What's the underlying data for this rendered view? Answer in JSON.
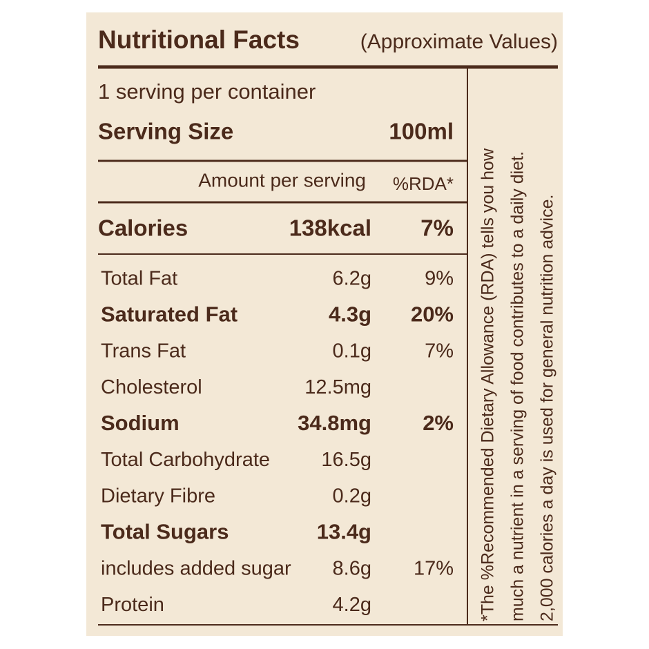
{
  "header": {
    "title": "Nutritional Facts",
    "subtitle": "(Approximate Values)"
  },
  "serving": {
    "per_container": "1 serving per container",
    "size_label": "Serving Size",
    "size_value": "100ml"
  },
  "columns": {
    "amount": "Amount per serving",
    "rda": "%RDA*"
  },
  "calories": {
    "label": "Calories",
    "amount": "138kcal",
    "rda": "7%"
  },
  "rows": [
    {
      "label": "Total Fat",
      "amount": "6.2g",
      "rda": "9%",
      "bold": false
    },
    {
      "label": "Saturated Fat",
      "amount": "4.3g",
      "rda": "20%",
      "bold": true
    },
    {
      "label": "Trans Fat",
      "amount": "0.1g",
      "rda": "7%",
      "bold": false
    },
    {
      "label": "Cholesterol",
      "amount": "12.5mg",
      "bold": false
    },
    {
      "label": "Sodium",
      "amount": "34.8mg",
      "rda": "2%",
      "bold": true
    },
    {
      "label": "Total Carbohydrate",
      "amount": "16.5g",
      "bold": false
    },
    {
      "label": "Dietary Fibre",
      "amount": "0.2g",
      "bold": false
    },
    {
      "label": "Total Sugars",
      "amount": "13.4g",
      "bold": true
    },
    {
      "label": "includes added sugar",
      "amount": "8.6g",
      "rda": "17%",
      "bold": false
    },
    {
      "label": "Protein",
      "amount": "4.2g",
      "bold": false
    }
  ],
  "footnote": [
    "*The %Recommended Dietary Allowance (RDA) tells you how",
    "much a nutrient in a serving of food contributes to a daily diet.",
    "2,000 calories a day is used for general nutrition advice."
  ]
}
